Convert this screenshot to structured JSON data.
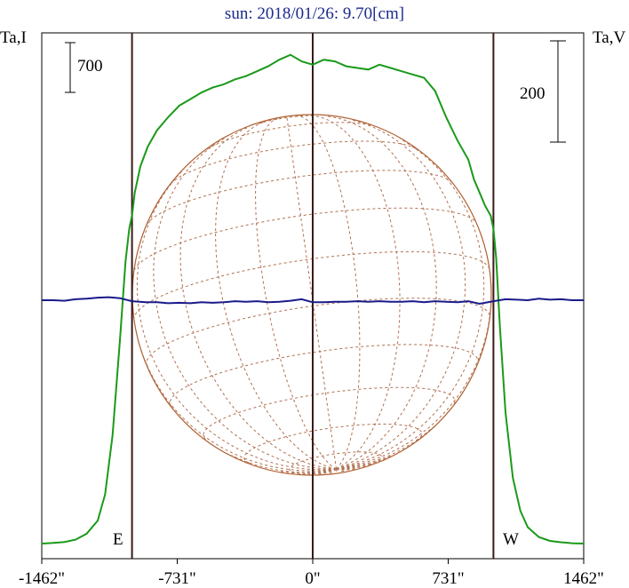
{
  "chart_data": {
    "type": "line",
    "title": "sun: 2018/01/26: 9.70[cm]",
    "left_axis_label": "Ta,I",
    "right_axis_label": "Ta,V",
    "scale_bar_left": "700",
    "scale_bar_right": "200",
    "east_label": "E",
    "west_label": "W",
    "x_tick_labels": [
      "-1462\"",
      "-731\"",
      "0\"",
      "731\"",
      "1462\""
    ],
    "x_ticks": [
      -1462,
      -731,
      0,
      731,
      1462
    ],
    "xlim": [
      -1462,
      1462
    ],
    "limb_markers": [
      -975,
      0,
      975
    ],
    "series": [
      {
        "axis": "left",
        "color": "#1a9a1a",
        "x": [
          -1462,
          -1400,
          -1340,
          -1280,
          -1220,
          -1160,
          -1120,
          -1080,
          -1040,
          -1010,
          -990,
          -975,
          -960,
          -930,
          -890,
          -840,
          -780,
          -720,
          -660,
          -600,
          -540,
          -480,
          -420,
          -360,
          -300,
          -240,
          -180,
          -120,
          -60,
          0,
          60,
          120,
          180,
          240,
          300,
          360,
          420,
          480,
          540,
          600,
          660,
          720,
          780,
          840,
          870,
          900,
          930,
          960,
          975,
          990,
          1010,
          1040,
          1080,
          1120,
          1160,
          1220,
          1280,
          1340,
          1400,
          1462
        ],
        "y": [
          0,
          2,
          5,
          12,
          30,
          70,
          150,
          330,
          620,
          860,
          960,
          1000,
          1070,
          1150,
          1210,
          1260,
          1300,
          1335,
          1355,
          1375,
          1390,
          1400,
          1415,
          1425,
          1440,
          1455,
          1475,
          1490,
          1470,
          1460,
          1475,
          1470,
          1455,
          1450,
          1445,
          1460,
          1450,
          1440,
          1430,
          1420,
          1380,
          1300,
          1230,
          1170,
          1110,
          1070,
          1030,
          1000,
          960,
          870,
          660,
          400,
          200,
          100,
          50,
          20,
          8,
          4,
          1,
          0
        ]
      },
      {
        "axis": "right",
        "color": "#1a1a8a",
        "x": [
          -1462,
          -1400,
          -1340,
          -1280,
          -1220,
          -1160,
          -1100,
          -1040,
          -975,
          -900,
          -840,
          -780,
          -720,
          -660,
          -600,
          -540,
          -480,
          -420,
          -360,
          -300,
          -240,
          -180,
          -120,
          -60,
          0,
          60,
          120,
          180,
          240,
          300,
          360,
          420,
          480,
          540,
          600,
          660,
          720,
          780,
          840,
          900,
          975,
          1040,
          1100,
          1160,
          1220,
          1280,
          1340,
          1400,
          1462
        ],
        "y": [
          0,
          0,
          -1,
          2,
          3,
          5,
          6,
          4,
          -2,
          -4,
          -4,
          -6,
          -5,
          -6,
          -4,
          -5,
          -4,
          -2,
          -3,
          -2,
          -4,
          -3,
          -1,
          2,
          -4,
          -4,
          -3,
          -3,
          -2,
          -3,
          -2,
          -3,
          -3,
          -2,
          -4,
          -2,
          -3,
          -4,
          -2,
          -7,
          -2,
          2,
          1,
          0,
          3,
          1,
          2,
          0,
          0
        ]
      }
    ]
  }
}
